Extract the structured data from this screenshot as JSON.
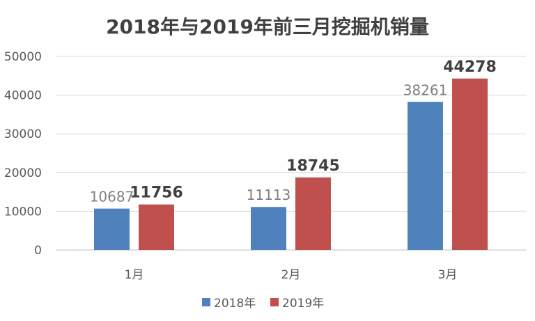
{
  "chart_data": {
    "type": "bar",
    "title": "2018年与2019年前三月挖掘机销量",
    "categories": [
      "1月",
      "2月",
      "3月"
    ],
    "series": [
      {
        "name": "2018年",
        "values": [
          10687,
          11113,
          38261
        ],
        "color": "#4F81BD",
        "label_bold": false
      },
      {
        "name": "2019年",
        "values": [
          11756,
          18745,
          44278
        ],
        "color": "#C0504D",
        "label_bold": true
      }
    ],
    "yticks": [
      "0",
      "10000",
      "20000",
      "30000",
      "40000",
      "50000"
    ],
    "ylim": [
      0,
      50000
    ],
    "grid": true,
    "legend": "bottom",
    "xlabel": "",
    "ylabel": ""
  }
}
